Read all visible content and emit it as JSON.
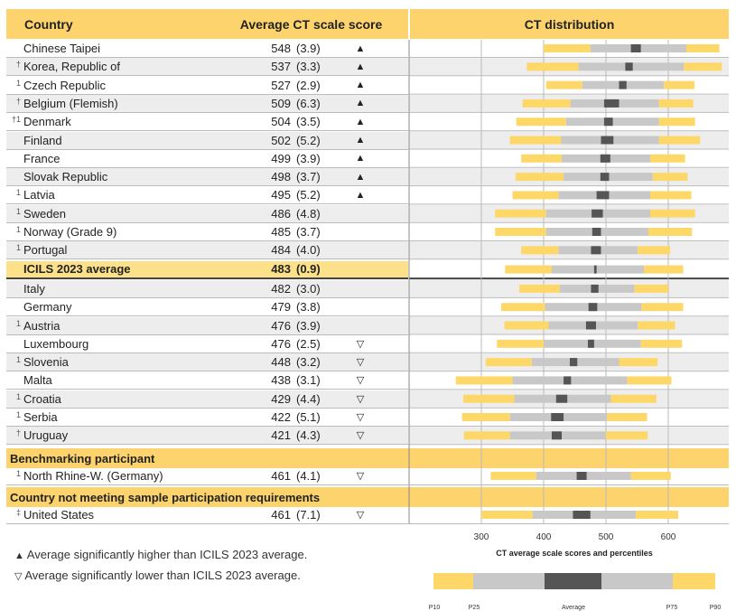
{
  "headers": {
    "country": "Country",
    "avg": "Average CT scale score",
    "dist": "CT distribution"
  },
  "sections": {
    "benchmark": "Benchmarking participant",
    "not_meeting": "Country not meeting sample participation requirements"
  },
  "legend": {
    "higher": "Average significantly higher than ICILS 2023 average.",
    "lower": "Average significantly lower than ICILS 2023 average.",
    "higher_symbol": "▲",
    "lower_symbol": "▽"
  },
  "colors": {
    "p10_p25": "#fdd869",
    "p25_p75": "#c8c8c8",
    "ci": "#555555",
    "header": "#fdd36d"
  },
  "chart_data": {
    "type": "bar",
    "xlabel": "CT average scale scores and percentiles",
    "xlim": [
      300,
      600
    ],
    "x_ticks": [
      300,
      400,
      500,
      600
    ],
    "percentile_labels": [
      "P10",
      "P25",
      "Average",
      "P75",
      "P90"
    ],
    "rows": [
      {
        "country": "Chinese Taipei",
        "note": "",
        "score": 548,
        "se": "(3.9)",
        "sig": "up",
        "p10": 400,
        "p25": 475,
        "ci": [
          540,
          556
        ],
        "p75": 629,
        "p90": 682
      },
      {
        "country": "Korea, Republic of",
        "note": "†",
        "score": 537,
        "se": "(3.3)",
        "sig": "up",
        "p10": 373,
        "p25": 456,
        "ci": [
          531,
          543
        ],
        "p75": 625,
        "p90": 686
      },
      {
        "country": "Czech Republic",
        "note": "1",
        "score": 527,
        "se": "(2.9)",
        "sig": "up",
        "p10": 404,
        "p25": 462,
        "ci": [
          521,
          533
        ],
        "p75": 593,
        "p90": 642
      },
      {
        "country": "Belgium (Flemish)",
        "note": "†",
        "score": 509,
        "se": "(6.3)",
        "sig": "up",
        "p10": 366,
        "p25": 443,
        "ci": [
          497,
          521
        ],
        "p75": 585,
        "p90": 640
      },
      {
        "country": "Denmark",
        "note": "†1",
        "score": 504,
        "se": "(3.5)",
        "sig": "up",
        "p10": 356,
        "p25": 436,
        "ci": [
          497,
          511
        ],
        "p75": 585,
        "p90": 643
      },
      {
        "country": "Finland",
        "note": "",
        "score": 502,
        "se": "(5.2)",
        "sig": "up",
        "p10": 346,
        "p25": 428,
        "ci": [
          492,
          512
        ],
        "p75": 585,
        "p90": 651
      },
      {
        "country": "France",
        "note": "",
        "score": 499,
        "se": "(3.9)",
        "sig": "up",
        "p10": 364,
        "p25": 429,
        "ci": [
          491,
          507
        ],
        "p75": 571,
        "p90": 627
      },
      {
        "country": "Slovak Republic",
        "note": "",
        "score": 498,
        "se": "(3.7)",
        "sig": "up",
        "p10": 355,
        "p25": 432,
        "ci": [
          491,
          505
        ],
        "p75": 575,
        "p90": 631
      },
      {
        "country": "Latvia",
        "note": "1",
        "score": 495,
        "se": "(5.2)",
        "sig": "up",
        "p10": 350,
        "p25": 424,
        "ci": [
          485,
          505
        ],
        "p75": 571,
        "p90": 637
      },
      {
        "country": "Sweden",
        "note": "1",
        "score": 486,
        "se": "(4.8)",
        "sig": "",
        "p10": 322,
        "p25": 404,
        "ci": [
          477,
          495
        ],
        "p75": 571,
        "p90": 643
      },
      {
        "country": "Norway (Grade 9)",
        "note": "1",
        "score": 485,
        "se": "(3.7)",
        "sig": "",
        "p10": 322,
        "p25": 404,
        "ci": [
          478,
          492
        ],
        "p75": 568,
        "p90": 638
      },
      {
        "country": "Portugal",
        "note": "1",
        "score": 484,
        "se": "(4.0)",
        "sig": "",
        "p10": 364,
        "p25": 424,
        "ci": [
          476,
          492
        ],
        "p75": 551,
        "p90": 603
      },
      {
        "country": "ICILS 2023 average",
        "note": "",
        "score": 483,
        "se": "(0.9)",
        "sig": "",
        "avg": true,
        "p10": 338,
        "p25": 413,
        "ci": [
          481,
          485
        ],
        "p75": 561,
        "p90": 624
      },
      {
        "country": "Italy",
        "note": "",
        "score": 482,
        "se": "(3.0)",
        "sig": "",
        "p10": 361,
        "p25": 426,
        "ci": [
          476,
          488
        ],
        "p75": 546,
        "p90": 600
      },
      {
        "country": "Germany",
        "note": "",
        "score": 479,
        "se": "(3.8)",
        "sig": "",
        "p10": 332,
        "p25": 402,
        "ci": [
          472,
          486
        ],
        "p75": 557,
        "p90": 624
      },
      {
        "country": "Austria",
        "note": "1",
        "score": 476,
        "se": "(3.9)",
        "sig": "",
        "p10": 337,
        "p25": 408,
        "ci": [
          468,
          484
        ],
        "p75": 551,
        "p90": 611
      },
      {
        "country": "Luxembourg",
        "note": "",
        "score": 476,
        "se": "(2.5)",
        "sig": "down",
        "p10": 325,
        "p25": 400,
        "ci": [
          471,
          481
        ],
        "p75": 556,
        "p90": 622
      },
      {
        "country": "Slovenia",
        "note": "1",
        "score": 448,
        "se": "(3.2)",
        "sig": "down",
        "p10": 307,
        "p25": 381,
        "ci": [
          442,
          454
        ],
        "p75": 521,
        "p90": 583
      },
      {
        "country": "Malta",
        "note": "",
        "score": 438,
        "se": "(3.1)",
        "sig": "down",
        "p10": 259,
        "p25": 350,
        "ci": [
          432,
          444
        ],
        "p75": 534,
        "p90": 605
      },
      {
        "country": "Croatia",
        "note": "1",
        "score": 429,
        "se": "(4.4)",
        "sig": "down",
        "p10": 271,
        "p25": 353,
        "ci": [
          420,
          438
        ],
        "p75": 508,
        "p90": 581
      },
      {
        "country": "Serbia",
        "note": "1",
        "score": 422,
        "se": "(5.1)",
        "sig": "down",
        "p10": 269,
        "p25": 346,
        "ci": [
          412,
          432
        ],
        "p75": 502,
        "p90": 566
      },
      {
        "country": "Uruguay",
        "note": "†",
        "score": 421,
        "se": "(4.3)",
        "sig": "down",
        "p10": 272,
        "p25": 346,
        "ci": [
          413,
          429
        ],
        "p75": 500,
        "p90": 567
      }
    ],
    "benchmark_rows": [
      {
        "country": "North Rhine-W. (Germany)",
        "note": "1",
        "score": 461,
        "se": "(4.1)",
        "sig": "down",
        "p10": 315,
        "p25": 388,
        "ci": [
          453,
          469
        ],
        "p75": 540,
        "p90": 604
      }
    ],
    "not_meeting_rows": [
      {
        "country": "United States",
        "note": "‡",
        "score": 461,
        "se": "(7.1)",
        "sig": "down",
        "p10": 300,
        "p25": 382,
        "ci": [
          447,
          475
        ],
        "p75": 548,
        "p90": 616
      }
    ]
  }
}
